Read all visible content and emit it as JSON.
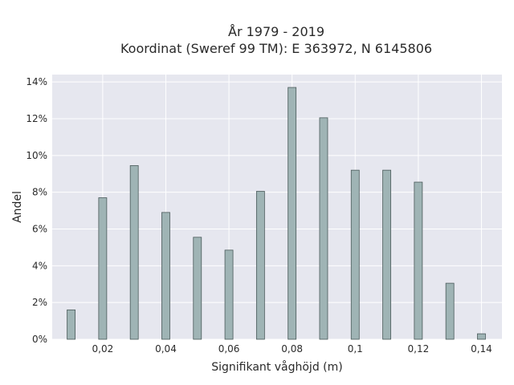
{
  "chart_data": {
    "type": "bar",
    "title_lines": [
      "År 1979 - 2019",
      "Koordinat (Sweref 99 TM): E 363972, N 6145806"
    ],
    "xlabel": "Signifikant våghöjd (m)",
    "ylabel": "Andel",
    "x": [
      0.01,
      0.02,
      0.03,
      0.04,
      0.05,
      0.06,
      0.07,
      0.08,
      0.09,
      0.1,
      0.11,
      0.12,
      0.13,
      0.14
    ],
    "values": [
      1.6,
      7.7,
      9.45,
      6.9,
      5.55,
      4.85,
      8.05,
      13.7,
      12.05,
      9.2,
      9.2,
      8.55,
      3.05,
      0.3
    ],
    "xlim": [
      0.004,
      0.1465
    ],
    "ylim": [
      0,
      14.4
    ],
    "x_ticks": [
      0.02,
      0.04,
      0.06,
      0.08,
      0.1,
      0.12,
      0.14
    ],
    "x_tick_labels": [
      "0,02",
      "0,04",
      "0,06",
      "0,08",
      "0,1",
      "0,12",
      "0,14"
    ],
    "y_ticks": [
      0,
      2,
      4,
      6,
      8,
      10,
      12,
      14
    ],
    "y_tick_labels": [
      "0%",
      "2%",
      "4%",
      "6%",
      "8%",
      "10%",
      "12%",
      "14%"
    ],
    "grid": true,
    "colors": {
      "bar_fill": "#9fb4b5",
      "bar_stroke": "#4a5a5a",
      "plot_background": "#e6e7ef",
      "grid": "#ffffff"
    }
  }
}
